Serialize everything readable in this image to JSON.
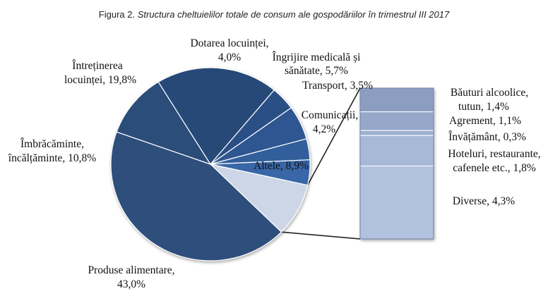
{
  "title": {
    "prefix": "Figura 2.",
    "text": "Structura cheltuielilor totale de consum ale gospodăriilor în trimestrul III 2017"
  },
  "chart_data": {
    "type": "pie",
    "title": "Figura 2. Structura cheltuielilor totale de consum ale gospodăriilor în trimestrul III 2017",
    "unit": "%",
    "slices": [
      {
        "key": "produse",
        "label": [
          "Produse alimentare,",
          "43,0%"
        ],
        "value": 43.0,
        "color": "#2f4f7c"
      },
      {
        "key": "imbracaminte",
        "label": [
          "Îmbrăcăminte,",
          "încălțăminte, 10,8%"
        ],
        "value": 10.8,
        "color": "#2c4d7a"
      },
      {
        "key": "intretinerea",
        "label": [
          "Întreținerea",
          "locuinței, 19,8%"
        ],
        "value": 19.8,
        "color": "#274878"
      },
      {
        "key": "dotarea",
        "label": [
          "Dotarea locuinței,",
          "4,0%"
        ],
        "value": 4.0,
        "color": "#2a4f86"
      },
      {
        "key": "ingrijire",
        "label": [
          "Îngrijire medicală și",
          "sănătate, 5,7%"
        ],
        "value": 5.7,
        "color": "#2e5690"
      },
      {
        "key": "transport",
        "label": [
          "Transport, 3,5%"
        ],
        "value": 3.5,
        "color": "#335e9b"
      },
      {
        "key": "comunicatii",
        "label": [
          "Comunicații,",
          "4,2%"
        ],
        "value": 4.2,
        "color": "#3866a6"
      },
      {
        "key": "altele",
        "label": [
          "Altele, 8,9%"
        ],
        "value": 8.9,
        "color": "#cdd6e6"
      }
    ],
    "breakdown_of": "altele",
    "breakdown": [
      {
        "key": "bauturi",
        "label": [
          "Băuturi alcoolice,",
          "tutun, 1,4%"
        ],
        "value": 1.4,
        "color": "#8b9ec1"
      },
      {
        "key": "agrement",
        "label": [
          "Agrement, 1,1%"
        ],
        "value": 1.1,
        "color": "#95a8ca"
      },
      {
        "key": "invatamant",
        "label": [
          "Învățământ, 0,3%"
        ],
        "value": 0.3,
        "color": "#9fb1d1"
      },
      {
        "key": "hoteluri",
        "label": [
          "Hoteluri, restaurante,",
          "cafenele etc., 1,8%"
        ],
        "value": 1.8,
        "color": "#a8b9d8"
      },
      {
        "key": "diverse",
        "label": [
          "Diverse, 4,3%"
        ],
        "value": 4.3,
        "color": "#b1c2de"
      }
    ]
  }
}
